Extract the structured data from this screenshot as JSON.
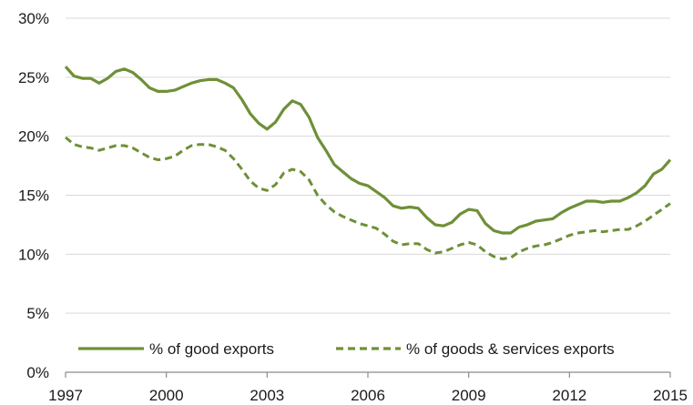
{
  "chart_data": {
    "type": "line",
    "title": "",
    "xlabel": "",
    "ylabel": "",
    "xlim": [
      1997,
      2015
    ],
    "ylim": [
      0,
      30
    ],
    "grid": true,
    "legend_position": "bottom",
    "y_ticks": [
      0,
      5,
      10,
      15,
      20,
      25,
      30
    ],
    "y_tick_labels": [
      "0%",
      "5%",
      "10%",
      "15%",
      "20%",
      "25%",
      "30%"
    ],
    "x_ticks": [
      1997,
      2000,
      2003,
      2006,
      2009,
      2012,
      2015
    ],
    "x_tick_labels": [
      "1997",
      "2000",
      "2003",
      "2006",
      "2009",
      "2012",
      "2015"
    ],
    "series": [
      {
        "name": "% of good exports",
        "color": "#6e9038",
        "style": "solid",
        "x": [
          1997.0,
          1997.25,
          1997.5,
          1997.75,
          1998.0,
          1998.25,
          1998.5,
          1998.75,
          1999.0,
          1999.25,
          1999.5,
          1999.75,
          2000.0,
          2000.25,
          2000.5,
          2000.75,
          2001.0,
          2001.25,
          2001.5,
          2001.75,
          2002.0,
          2002.25,
          2002.5,
          2002.75,
          2003.0,
          2003.25,
          2003.5,
          2003.75,
          2004.0,
          2004.25,
          2004.5,
          2004.75,
          2005.0,
          2005.25,
          2005.5,
          2005.75,
          2006.0,
          2006.25,
          2006.5,
          2006.75,
          2007.0,
          2007.25,
          2007.5,
          2007.75,
          2008.0,
          2008.25,
          2008.5,
          2008.75,
          2009.0,
          2009.25,
          2009.5,
          2009.75,
          2010.0,
          2010.25,
          2010.5,
          2010.75,
          2011.0,
          2011.25,
          2011.5,
          2011.75,
          2012.0,
          2012.25,
          2012.5,
          2012.75,
          2013.0,
          2013.25,
          2013.5,
          2013.75,
          2014.0,
          2014.25,
          2014.5,
          2014.75,
          2015.0
        ],
        "values": [
          25.9,
          25.1,
          24.9,
          24.9,
          24.5,
          24.9,
          25.5,
          25.7,
          25.4,
          24.8,
          24.1,
          23.8,
          23.8,
          23.9,
          24.2,
          24.5,
          24.7,
          24.8,
          24.8,
          24.5,
          24.1,
          23.1,
          21.9,
          21.1,
          20.6,
          21.2,
          22.3,
          23.0,
          22.7,
          21.6,
          19.9,
          18.8,
          17.6,
          17.0,
          16.4,
          16.0,
          15.8,
          15.3,
          14.8,
          14.1,
          13.9,
          14.0,
          13.9,
          13.1,
          12.5,
          12.4,
          12.7,
          13.4,
          13.8,
          13.7,
          12.6,
          12.0,
          11.8,
          11.8,
          12.3,
          12.5,
          12.8,
          12.9,
          13.0,
          13.5,
          13.9,
          14.2,
          14.5,
          14.5,
          14.4,
          14.5,
          14.5,
          14.8,
          15.2,
          15.8,
          16.8,
          17.2,
          18.0
        ]
      },
      {
        "name": "% of goods & services exports",
        "color": "#6e9038",
        "style": "dashed",
        "x": [
          1997.0,
          1997.25,
          1997.5,
          1997.75,
          1998.0,
          1998.25,
          1998.5,
          1998.75,
          1999.0,
          1999.25,
          1999.5,
          1999.75,
          2000.0,
          2000.25,
          2000.5,
          2000.75,
          2001.0,
          2001.25,
          2001.5,
          2001.75,
          2002.0,
          2002.25,
          2002.5,
          2002.75,
          2003.0,
          2003.25,
          2003.5,
          2003.75,
          2004.0,
          2004.25,
          2004.5,
          2004.75,
          2005.0,
          2005.25,
          2005.5,
          2005.75,
          2006.0,
          2006.25,
          2006.5,
          2006.75,
          2007.0,
          2007.25,
          2007.5,
          2007.75,
          2008.0,
          2008.25,
          2008.5,
          2008.75,
          2009.0,
          2009.25,
          2009.5,
          2009.75,
          2010.0,
          2010.25,
          2010.5,
          2010.75,
          2011.0,
          2011.25,
          2011.5,
          2011.75,
          2012.0,
          2012.25,
          2012.5,
          2012.75,
          2013.0,
          2013.25,
          2013.5,
          2013.75,
          2014.0,
          2014.25,
          2014.5,
          2014.75,
          2015.0
        ],
        "values": [
          19.9,
          19.3,
          19.1,
          19.0,
          18.8,
          19.0,
          19.2,
          19.2,
          19.0,
          18.6,
          18.2,
          18.0,
          18.1,
          18.3,
          18.8,
          19.2,
          19.3,
          19.3,
          19.1,
          18.8,
          18.1,
          17.2,
          16.2,
          15.6,
          15.4,
          15.9,
          16.9,
          17.2,
          17.0,
          16.3,
          15.0,
          14.2,
          13.6,
          13.2,
          12.9,
          12.6,
          12.4,
          12.2,
          11.7,
          11.1,
          10.8,
          10.9,
          10.9,
          10.4,
          10.1,
          10.2,
          10.5,
          10.8,
          11.0,
          10.8,
          10.2,
          9.8,
          9.6,
          9.7,
          10.2,
          10.5,
          10.7,
          10.8,
          11.0,
          11.3,
          11.6,
          11.8,
          11.9,
          12.0,
          11.9,
          12.0,
          12.1,
          12.1,
          12.4,
          12.8,
          13.3,
          13.8,
          14.3
        ]
      }
    ]
  }
}
